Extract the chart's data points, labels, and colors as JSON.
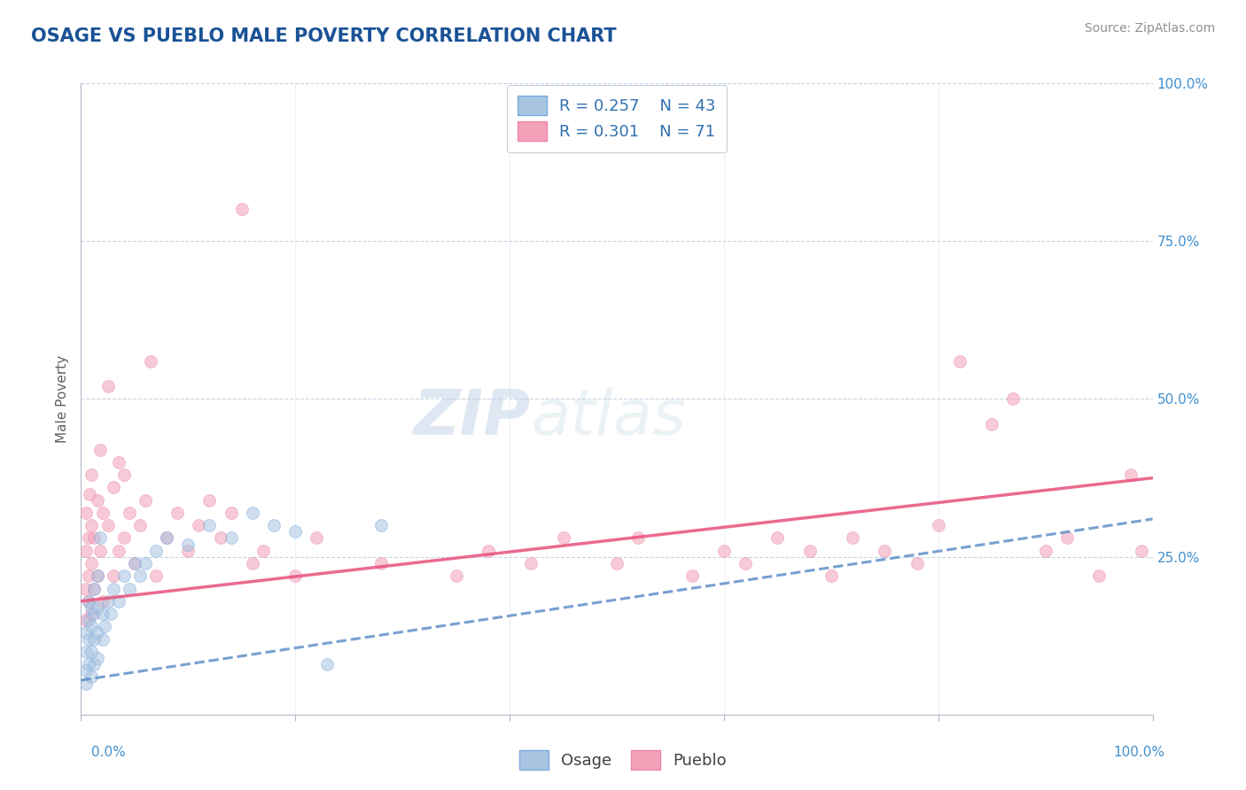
{
  "title": "OSAGE VS PUEBLO MALE POVERTY CORRELATION CHART",
  "source": "Source: ZipAtlas.com",
  "ylabel": "Male Poverty",
  "watermark_zip": "ZIP",
  "watermark_atlas": "atlas",
  "legend_r_osage": "R = 0.257",
  "legend_n_osage": "N = 43",
  "legend_r_pueblo": "R = 0.301",
  "legend_n_pueblo": "N = 71",
  "osage_color": "#a8c4e0",
  "pueblo_color": "#f4a0b8",
  "osage_edge_color": "#7aabe0",
  "pueblo_edge_color": "#e888a8",
  "osage_line_color": "#6090c8",
  "pueblo_line_color": "#e8507a",
  "title_color": "#1a5296",
  "label_color": "#4090d0",
  "background_color": "#ffffff",
  "grid_color": "#c8d4e4",
  "osage_scatter": [
    [
      0.005,
      0.05
    ],
    [
      0.005,
      0.07
    ],
    [
      0.005,
      0.1
    ],
    [
      0.005,
      0.13
    ],
    [
      0.007,
      0.08
    ],
    [
      0.007,
      0.12
    ],
    [
      0.007,
      0.15
    ],
    [
      0.007,
      0.18
    ],
    [
      0.01,
      0.06
    ],
    [
      0.01,
      0.1
    ],
    [
      0.01,
      0.14
    ],
    [
      0.01,
      0.17
    ],
    [
      0.012,
      0.08
    ],
    [
      0.012,
      0.12
    ],
    [
      0.012,
      0.16
    ],
    [
      0.012,
      0.2
    ],
    [
      0.015,
      0.09
    ],
    [
      0.015,
      0.13
    ],
    [
      0.015,
      0.17
    ],
    [
      0.015,
      0.22
    ],
    [
      0.018,
      0.28
    ],
    [
      0.02,
      0.12
    ],
    [
      0.02,
      0.16
    ],
    [
      0.022,
      0.14
    ],
    [
      0.025,
      0.18
    ],
    [
      0.028,
      0.16
    ],
    [
      0.03,
      0.2
    ],
    [
      0.035,
      0.18
    ],
    [
      0.04,
      0.22
    ],
    [
      0.045,
      0.2
    ],
    [
      0.05,
      0.24
    ],
    [
      0.055,
      0.22
    ],
    [
      0.06,
      0.24
    ],
    [
      0.07,
      0.26
    ],
    [
      0.08,
      0.28
    ],
    [
      0.1,
      0.27
    ],
    [
      0.12,
      0.3
    ],
    [
      0.14,
      0.28
    ],
    [
      0.16,
      0.32
    ],
    [
      0.18,
      0.3
    ],
    [
      0.2,
      0.29
    ],
    [
      0.23,
      0.08
    ],
    [
      0.28,
      0.3
    ]
  ],
  "pueblo_scatter": [
    [
      0.005,
      0.15
    ],
    [
      0.005,
      0.2
    ],
    [
      0.005,
      0.26
    ],
    [
      0.005,
      0.32
    ],
    [
      0.007,
      0.18
    ],
    [
      0.007,
      0.22
    ],
    [
      0.007,
      0.28
    ],
    [
      0.008,
      0.35
    ],
    [
      0.01,
      0.16
    ],
    [
      0.01,
      0.24
    ],
    [
      0.01,
      0.3
    ],
    [
      0.01,
      0.38
    ],
    [
      0.012,
      0.2
    ],
    [
      0.012,
      0.28
    ],
    [
      0.015,
      0.22
    ],
    [
      0.015,
      0.34
    ],
    [
      0.018,
      0.26
    ],
    [
      0.018,
      0.42
    ],
    [
      0.02,
      0.18
    ],
    [
      0.02,
      0.32
    ],
    [
      0.025,
      0.3
    ],
    [
      0.025,
      0.52
    ],
    [
      0.03,
      0.22
    ],
    [
      0.03,
      0.36
    ],
    [
      0.035,
      0.26
    ],
    [
      0.035,
      0.4
    ],
    [
      0.04,
      0.28
    ],
    [
      0.04,
      0.38
    ],
    [
      0.045,
      0.32
    ],
    [
      0.05,
      0.24
    ],
    [
      0.055,
      0.3
    ],
    [
      0.06,
      0.34
    ],
    [
      0.065,
      0.56
    ],
    [
      0.07,
      0.22
    ],
    [
      0.08,
      0.28
    ],
    [
      0.09,
      0.32
    ],
    [
      0.1,
      0.26
    ],
    [
      0.11,
      0.3
    ],
    [
      0.12,
      0.34
    ],
    [
      0.13,
      0.28
    ],
    [
      0.14,
      0.32
    ],
    [
      0.15,
      0.8
    ],
    [
      0.16,
      0.24
    ],
    [
      0.17,
      0.26
    ],
    [
      0.2,
      0.22
    ],
    [
      0.22,
      0.28
    ],
    [
      0.28,
      0.24
    ],
    [
      0.35,
      0.22
    ],
    [
      0.38,
      0.26
    ],
    [
      0.42,
      0.24
    ],
    [
      0.45,
      0.28
    ],
    [
      0.5,
      0.24
    ],
    [
      0.52,
      0.28
    ],
    [
      0.57,
      0.22
    ],
    [
      0.6,
      0.26
    ],
    [
      0.62,
      0.24
    ],
    [
      0.65,
      0.28
    ],
    [
      0.68,
      0.26
    ],
    [
      0.7,
      0.22
    ],
    [
      0.72,
      0.28
    ],
    [
      0.75,
      0.26
    ],
    [
      0.78,
      0.24
    ],
    [
      0.8,
      0.3
    ],
    [
      0.82,
      0.56
    ],
    [
      0.85,
      0.46
    ],
    [
      0.87,
      0.5
    ],
    [
      0.9,
      0.26
    ],
    [
      0.92,
      0.28
    ],
    [
      0.95,
      0.22
    ],
    [
      0.98,
      0.38
    ],
    [
      0.99,
      0.26
    ]
  ],
  "xlim": [
    0.0,
    1.0
  ],
  "ylim": [
    0.0,
    1.0
  ],
  "ytick_vals": [
    0.25,
    0.5,
    0.75,
    1.0
  ],
  "ytick_labels": [
    "25.0%",
    "50.0%",
    "75.0%",
    "100.0%"
  ],
  "marker_size": 100,
  "marker_alpha": 0.55,
  "legend_text_color": "#3070b0",
  "trend_alpha": 0.85
}
